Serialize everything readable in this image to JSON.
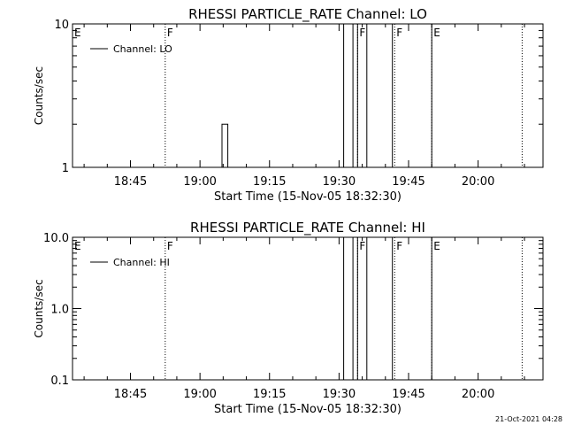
{
  "footer_timestamp": "21-Oct-2021 04:28",
  "chart_data": [
    {
      "type": "line",
      "title": "RHESSI PARTICLE_RATE Channel: LO",
      "xlabel": "Start Time (15-Nov-05 18:32:30)",
      "ylabel": "Counts/sec",
      "yscale": "log",
      "ylim": [
        1,
        10
      ],
      "yticks": [
        1,
        10
      ],
      "ytick_labels": [
        "1",
        "10"
      ],
      "xlim": [
        "18:32:30",
        "20:14:00"
      ],
      "xtick_labels": [
        "18:45",
        "19:00",
        "19:15",
        "19:30",
        "19:45",
        "20:00"
      ],
      "legend": {
        "position": "top-left",
        "entries": [
          "Channel: LO"
        ]
      },
      "series": [
        {
          "name": "Channel: LO",
          "points": [
            [
              "18:32:30",
              1
            ],
            [
              "19:04:45",
              1
            ],
            [
              "19:04:45",
              2
            ],
            [
              "19:06:00",
              2
            ],
            [
              "19:06:00",
              1
            ],
            [
              "19:31:00",
              1
            ],
            [
              "19:31:00",
              10
            ],
            [
              "19:33:00",
              10
            ],
            [
              "19:33:00",
              1
            ],
            [
              "19:34:00",
              1
            ],
            [
              "19:34:00",
              10
            ],
            [
              "19:36:00",
              10
            ],
            [
              "19:36:00",
              1
            ],
            [
              "19:41:30",
              1
            ],
            [
              "19:41:30",
              10
            ],
            [
              "19:41:30",
              1
            ],
            [
              "19:50:00",
              1
            ],
            [
              "19:50:00",
              10
            ],
            [
              "19:50:00",
              1
            ],
            [
              "20:14:00",
              1
            ]
          ]
        }
      ],
      "markers": [
        {
          "time": "18:32:30",
          "label": "E"
        },
        {
          "time": "18:52:30",
          "label": "F"
        },
        {
          "time": "19:34:00",
          "label": "F"
        },
        {
          "time": "19:42:00",
          "label": "F"
        },
        {
          "time": "19:50:00",
          "label": "E"
        },
        {
          "time": "20:09:30",
          "label": ""
        }
      ]
    },
    {
      "type": "line",
      "title": "RHESSI PARTICLE_RATE Channel: HI",
      "xlabel": "Start Time (15-Nov-05 18:32:30)",
      "ylabel": "Counts/sec",
      "yscale": "log",
      "ylim": [
        0.1,
        10
      ],
      "yticks": [
        0.1,
        1,
        10
      ],
      "ytick_labels": [
        "0.1",
        "1.0",
        "10.0"
      ],
      "xlim": [
        "18:32:30",
        "20:14:00"
      ],
      "xtick_labels": [
        "18:45",
        "19:00",
        "19:15",
        "19:30",
        "19:45",
        "20:00"
      ],
      "legend": {
        "position": "top-left",
        "entries": [
          "Channel: HI"
        ]
      },
      "series": [
        {
          "name": "Channel: HI",
          "points": [
            [
              "18:32:30",
              0.1
            ],
            [
              "19:31:00",
              0.1
            ],
            [
              "19:31:00",
              10
            ],
            [
              "19:33:00",
              10
            ],
            [
              "19:33:00",
              0.1
            ],
            [
              "19:34:00",
              0.1
            ],
            [
              "19:34:00",
              10
            ],
            [
              "19:36:00",
              10
            ],
            [
              "19:36:00",
              0.1
            ],
            [
              "19:41:30",
              0.1
            ],
            [
              "19:41:30",
              10
            ],
            [
              "19:41:30",
              0.1
            ],
            [
              "19:50:00",
              0.1
            ],
            [
              "19:50:00",
              10
            ],
            [
              "19:50:00",
              0.1
            ],
            [
              "20:14:00",
              0.1
            ]
          ]
        }
      ],
      "markers": [
        {
          "time": "18:32:30",
          "label": "E"
        },
        {
          "time": "18:52:30",
          "label": "F"
        },
        {
          "time": "19:34:00",
          "label": "F"
        },
        {
          "time": "19:42:00",
          "label": "F"
        },
        {
          "time": "19:50:00",
          "label": "E"
        },
        {
          "time": "20:09:30",
          "label": ""
        }
      ]
    }
  ]
}
